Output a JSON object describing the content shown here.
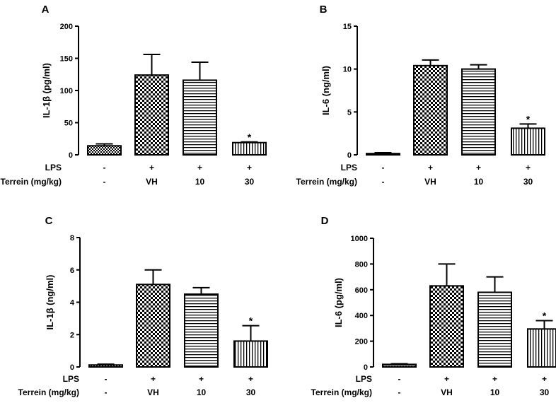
{
  "figure": {
    "condition_rows": [
      {
        "label": "LPS",
        "values": [
          "-",
          "+",
          "+",
          "+"
        ]
      },
      {
        "label": "Terrein (mg/kg)",
        "values": [
          "-",
          "VH",
          "10",
          "30"
        ]
      }
    ]
  },
  "chart_data": [
    {
      "panel": "A",
      "type": "bar",
      "title": "",
      "ylabel": "IL-1β (pg/ml)",
      "ylim": [
        0,
        200
      ],
      "yticks": [
        0,
        50,
        100,
        150,
        200
      ],
      "categories": [
        "- / -",
        "+ / VH",
        "+ / 10",
        "+ / 30"
      ],
      "values": [
        14,
        124,
        116,
        19
      ],
      "errors": [
        3,
        32,
        28,
        1
      ],
      "significance": [
        "",
        "",
        "",
        "*"
      ],
      "patterns": [
        "checker-small",
        "checker",
        "horizontal",
        "vertical"
      ],
      "grid": false
    },
    {
      "panel": "B",
      "type": "bar",
      "title": "",
      "ylabel": "IL-6 (ng/ml)",
      "ylim": [
        0,
        15
      ],
      "yticks": [
        0,
        5,
        10,
        15
      ],
      "categories": [
        "- / -",
        "+ / VH",
        "+ / 10",
        "+ / 30"
      ],
      "values": [
        0.15,
        10.4,
        10.0,
        3.1
      ],
      "errors": [
        0.1,
        0.65,
        0.5,
        0.5
      ],
      "significance": [
        "",
        "",
        "",
        "*"
      ],
      "patterns": [
        "checker-small",
        "checker",
        "horizontal",
        "vertical"
      ],
      "grid": false
    },
    {
      "panel": "C",
      "type": "bar",
      "title": "",
      "ylabel": "IL-1β (ng/ml)",
      "ylim": [
        0,
        8
      ],
      "yticks": [
        0,
        2,
        4,
        6,
        8
      ],
      "categories": [
        "- / -",
        "+ / VH",
        "+ / 10",
        "+ / 30"
      ],
      "values": [
        0.12,
        5.1,
        4.5,
        1.6
      ],
      "errors": [
        0.05,
        0.9,
        0.4,
        0.95
      ],
      "significance": [
        "",
        "",
        "",
        "*"
      ],
      "patterns": [
        "checker-small",
        "checker",
        "horizontal",
        "vertical"
      ],
      "grid": false
    },
    {
      "panel": "D",
      "type": "bar",
      "title": "",
      "ylabel": "IL-6 (pg/ml)",
      "ylim": [
        0,
        1000
      ],
      "yticks": [
        0,
        200,
        400,
        600,
        800,
        1000
      ],
      "categories": [
        "- / -",
        "+ / VH",
        "+ / 10",
        "+ / 30"
      ],
      "values": [
        20,
        630,
        580,
        295
      ],
      "errors": [
        5,
        170,
        120,
        65
      ],
      "significance": [
        "",
        "",
        "",
        "*"
      ],
      "patterns": [
        "checker-small",
        "checker",
        "horizontal",
        "vertical"
      ],
      "grid": false
    }
  ]
}
